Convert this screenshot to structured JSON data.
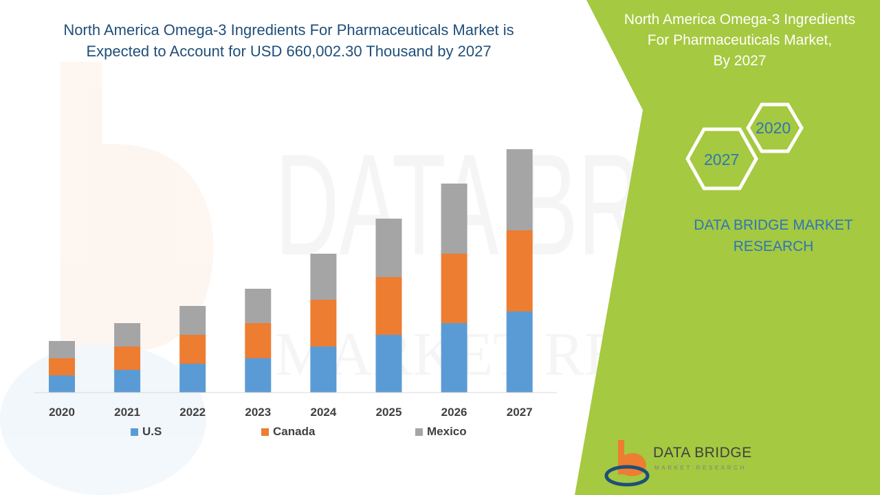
{
  "header": {
    "title_line1": "North America Omega-3 Ingredients For Pharmaceuticals Market is",
    "title_line2": "Expected to Account for USD 660,002.30 Thousand by 2027"
  },
  "side_panel": {
    "title_line1": "North America Omega-3 Ingredients",
    "title_line2": "For Pharmaceuticals Market,",
    "title_line3": "By 2027",
    "hex_year_1": "2020",
    "hex_year_2": "2027",
    "brand_line1": "DATA BRIDGE MARKET",
    "brand_line2": "RESEARCH",
    "panel_color": "#a5c940"
  },
  "logo": {
    "name": "DATA BRIDGE",
    "tagline": "MARKET RESEARCH"
  },
  "watermark": {
    "line1": "DATA BRIDGE",
    "line2": "MARKET RESEARCH"
  },
  "chart_data": {
    "type": "bar",
    "stacked": true,
    "categories": [
      "2020",
      "2021",
      "2022",
      "2023",
      "2024",
      "2025",
      "2026",
      "2027"
    ],
    "series": [
      {
        "name": "U.S",
        "color": "#5b9bd5",
        "values": [
          25,
          33,
          42,
          50,
          67,
          84,
          101,
          118
        ]
      },
      {
        "name": "Canada",
        "color": "#ed7d31",
        "values": [
          25,
          34,
          42,
          51,
          68,
          84,
          101,
          118
        ]
      },
      {
        "name": "Mexico",
        "color": "#a5a5a5",
        "values": [
          25,
          34,
          42,
          50,
          67,
          85,
          102,
          118
        ]
      }
    ],
    "ylim": [
      0,
      360
    ],
    "grid": false,
    "y_axis_visible": false,
    "legend_position": "bottom"
  }
}
